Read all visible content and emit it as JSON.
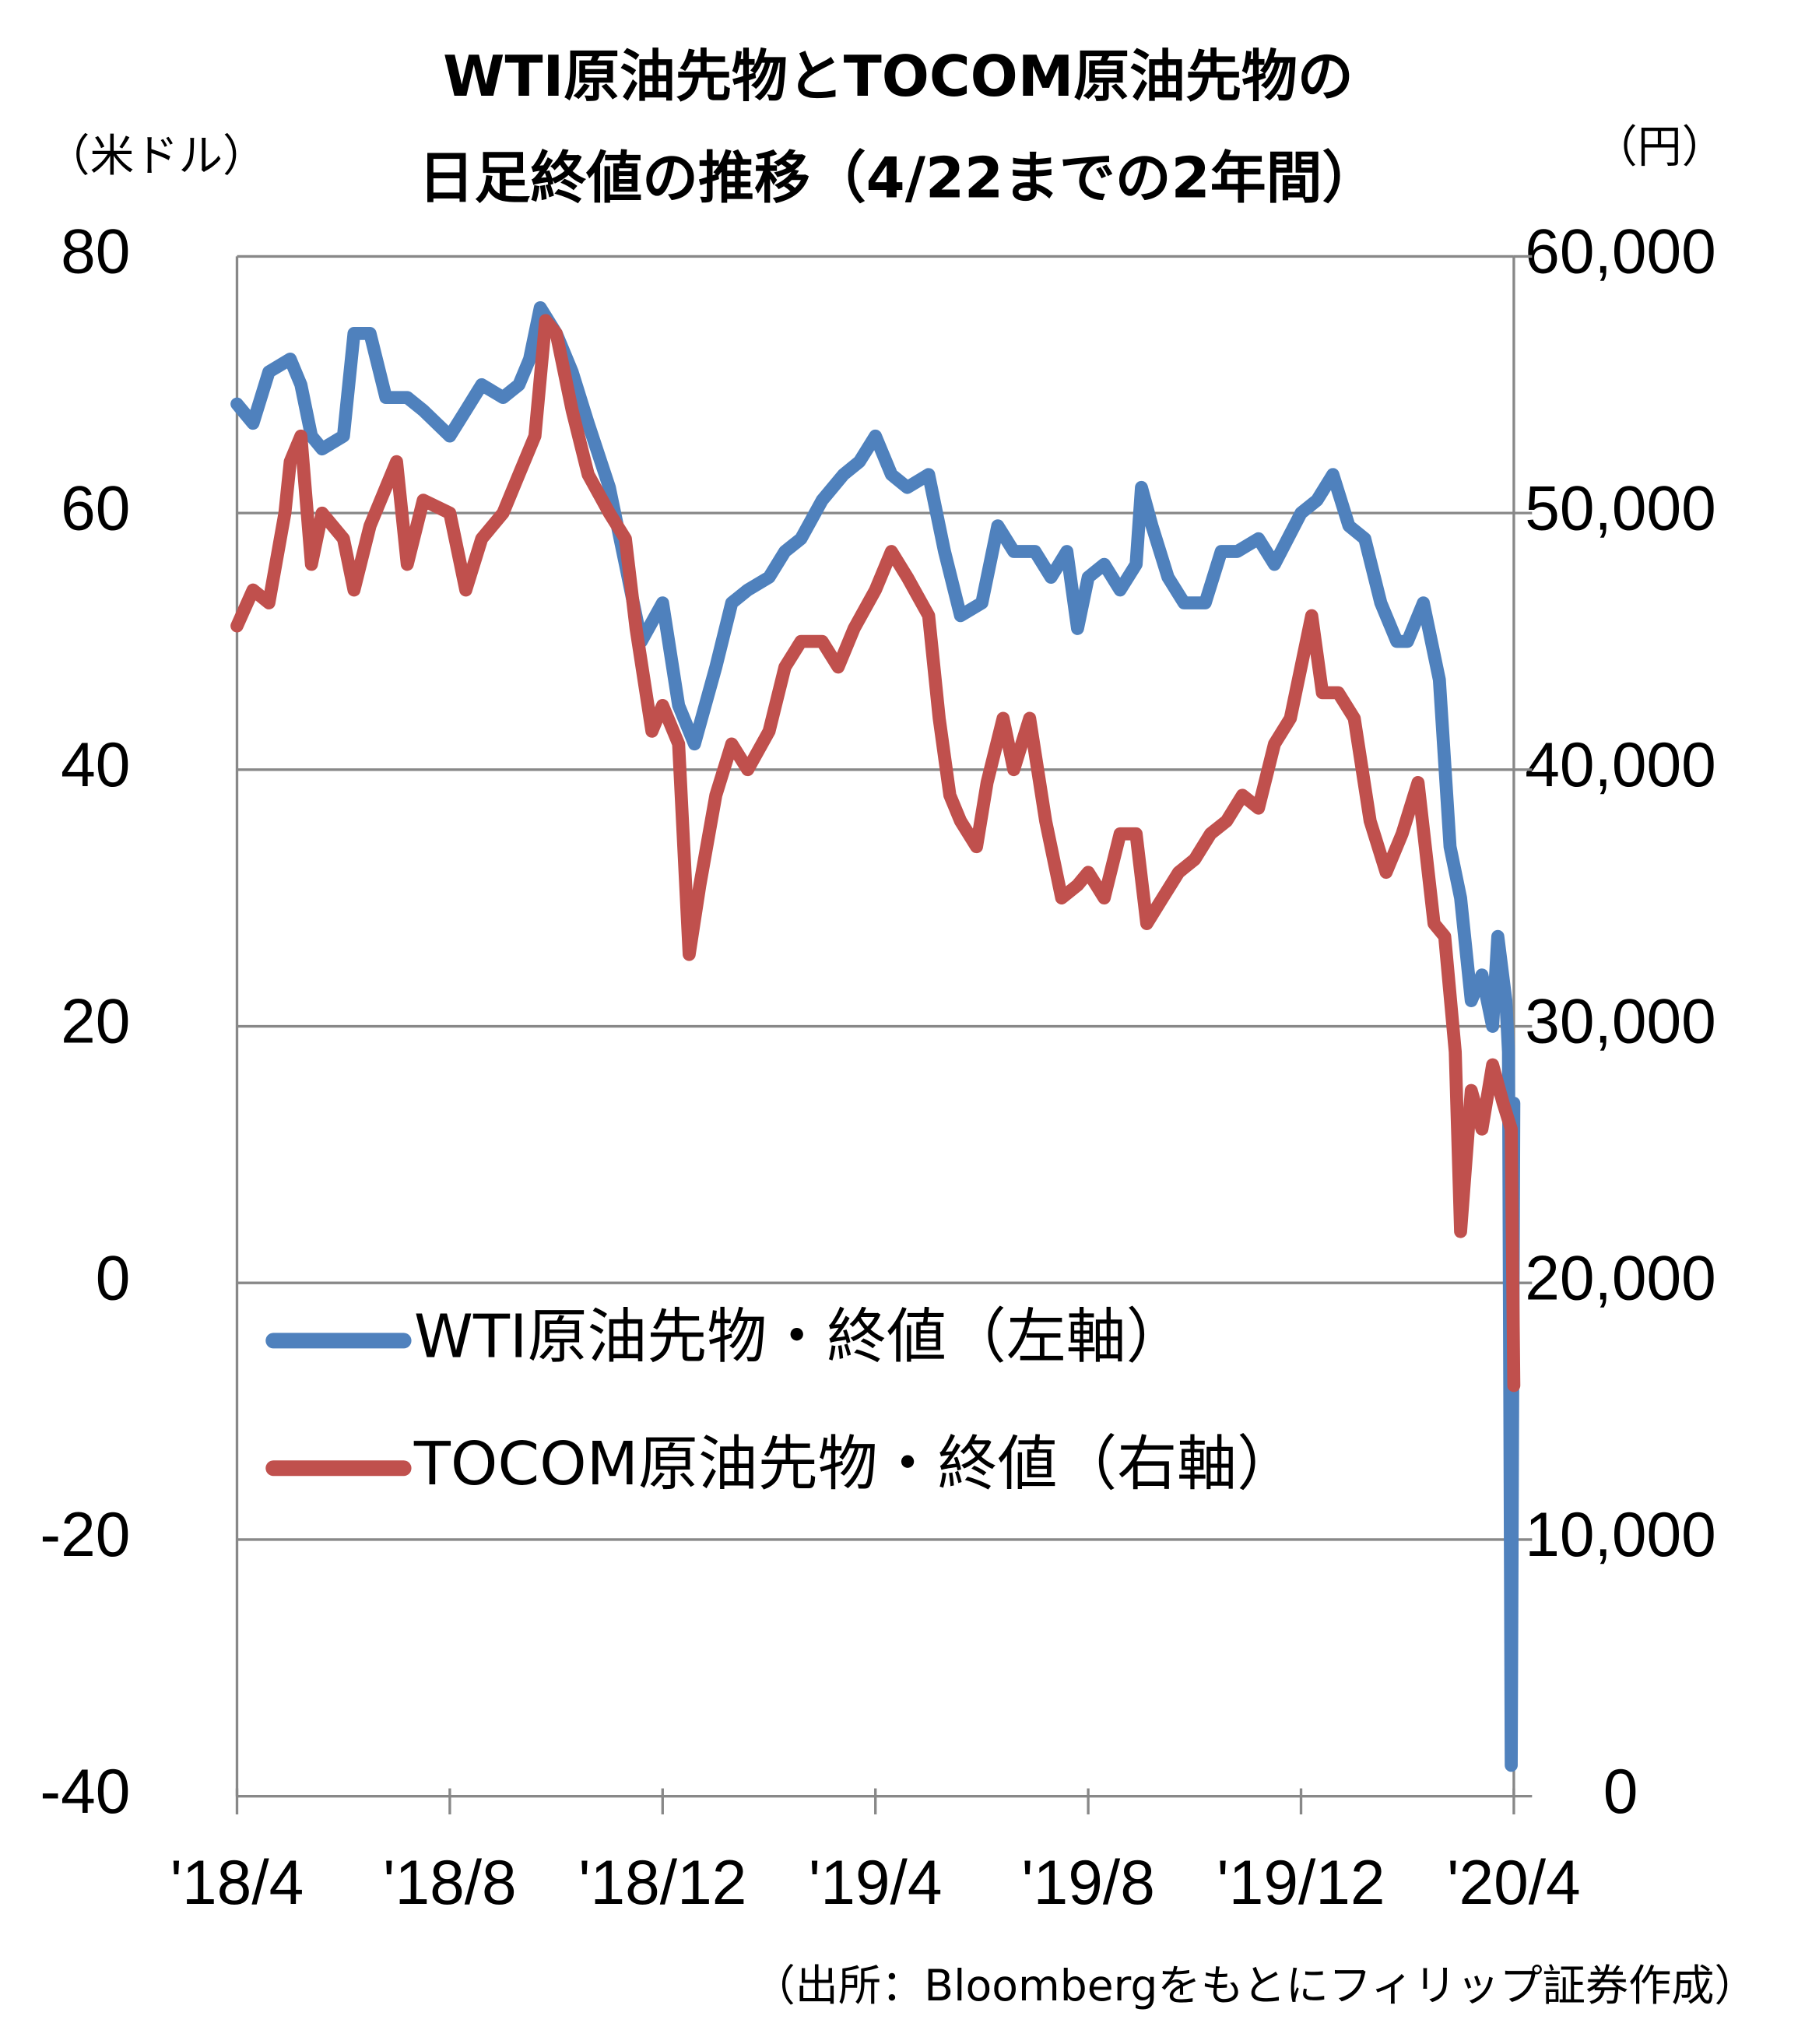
{
  "chart_data": {
    "type": "line",
    "title": [
      "WTI原油先物とTOCOM原油先物の",
      "日足終値の推移（4/22までの2年間）"
    ],
    "ylabel": "（米ドル）",
    "y2label": "（円）",
    "source": "（出所：Bloombergをもとにフィリップ証券作成）",
    "xlim": [
      0,
      24
    ],
    "xticks": [
      {
        "value": 0,
        "label": "'18/4"
      },
      {
        "value": 4,
        "label": "'18/8"
      },
      {
        "value": 8,
        "label": "'18/12"
      },
      {
        "value": 12,
        "label": "'19/4"
      },
      {
        "value": 16,
        "label": "'19/8"
      },
      {
        "value": 20,
        "label": "'19/12"
      },
      {
        "value": 24,
        "label": "'20/4"
      }
    ],
    "ylim": [
      -40,
      80
    ],
    "yticks": [
      80,
      60,
      40,
      20,
      0,
      -20,
      -40
    ],
    "negative_tick_color": "#ff0000",
    "y2lim": [
      0,
      60000
    ],
    "y2ticks": [
      {
        "value": 60000,
        "label": "60,000"
      },
      {
        "value": 50000,
        "label": "50,000"
      },
      {
        "value": 40000,
        "label": "40,000"
      },
      {
        "value": 30000,
        "label": "30,000"
      },
      {
        "value": 20000,
        "label": "20,000"
      },
      {
        "value": 10000,
        "label": "10,000"
      },
      0
    ],
    "grid": true,
    "legend": "center-left",
    "series": [
      {
        "name": "WTI原油先物・終値（左軸）",
        "color": "#4f81bd",
        "x": [
          0,
          0.3,
          0.6,
          1.0,
          1.2,
          1.4,
          1.6,
          2.0,
          2.2,
          2.5,
          2.8,
          3.2,
          3.5,
          4.0,
          4.3,
          4.6,
          5.0,
          5.3,
          5.5,
          5.7,
          6.0,
          6.3,
          6.6,
          7.0,
          7.3,
          7.6,
          8.0,
          8.3,
          8.6,
          9.0,
          9.3,
          9.6,
          10.0,
          10.3,
          10.6,
          11.0,
          11.4,
          11.7,
          12.0,
          12.3,
          12.6,
          13.0,
          13.3,
          13.6,
          14.0,
          14.3,
          14.6,
          15.0,
          15.3,
          15.6,
          15.8,
          16.0,
          16.3,
          16.6,
          16.9,
          17.0,
          17.2,
          17.5,
          17.8,
          18.2,
          18.5,
          18.8,
          19.2,
          19.5,
          20.0,
          20.3,
          20.6,
          20.9,
          21.2,
          21.5,
          21.8,
          22.0,
          22.3,
          22.6,
          22.8,
          23.0,
          23.2,
          23.4,
          23.6,
          23.7,
          23.85,
          23.9,
          23.95,
          24.0
        ],
        "values": [
          68.5,
          67,
          71,
          72,
          70,
          66,
          65,
          66,
          74,
          74,
          69,
          69,
          68,
          66,
          68,
          70,
          69,
          70,
          72,
          76,
          74,
          71,
          67,
          62,
          56,
          50,
          53,
          45,
          42,
          48,
          53,
          54,
          55,
          57,
          58,
          61,
          63,
          64,
          66,
          63,
          62,
          63,
          57,
          52,
          53,
          59,
          57,
          57,
          55,
          57,
          51,
          55,
          56,
          54,
          56,
          62,
          59,
          55,
          53,
          53,
          57,
          57,
          58,
          56,
          60,
          61,
          63,
          59,
          58,
          53,
          50,
          50,
          53,
          47,
          34,
          30,
          22,
          24,
          20,
          27,
          22,
          18,
          -37.6,
          14
        ]
      },
      {
        "name": "TOCOM原油先物・終値（右軸）",
        "color": "#c0504d",
        "axis": "y2",
        "x": [
          0,
          0.3,
          0.6,
          0.9,
          1.0,
          1.2,
          1.4,
          1.6,
          2.0,
          2.2,
          2.5,
          2.8,
          3.0,
          3.2,
          3.5,
          4.0,
          4.3,
          4.6,
          5.0,
          5.3,
          5.6,
          5.8,
          6.0,
          6.3,
          6.6,
          7.0,
          7.3,
          7.5,
          7.8,
          8.0,
          8.3,
          8.5,
          8.7,
          9.0,
          9.3,
          9.6,
          10.0,
          10.3,
          10.6,
          11.0,
          11.3,
          11.6,
          12.0,
          12.3,
          12.6,
          13.0,
          13.2,
          13.4,
          13.6,
          13.9,
          14.1,
          14.4,
          14.6,
          14.9,
          15.2,
          15.5,
          15.8,
          16.0,
          16.3,
          16.6,
          16.9,
          17.1,
          17.4,
          17.7,
          18.0,
          18.3,
          18.6,
          18.9,
          19.2,
          19.5,
          19.8,
          20.0,
          20.2,
          20.4,
          20.7,
          21.0,
          21.3,
          21.6,
          21.9,
          22.2,
          22.5,
          22.7,
          22.9,
          23.0,
          23.2,
          23.4,
          23.6,
          23.8,
          23.95,
          24.0
        ],
        "values": [
          45600,
          47000,
          46500,
          50000,
          52000,
          53000,
          48000,
          50000,
          49000,
          47000,
          49500,
          51000,
          52000,
          48000,
          50500,
          50000,
          47000,
          49000,
          50000,
          51500,
          53000,
          57500,
          57000,
          54000,
          51500,
          50000,
          49000,
          45500,
          41500,
          42500,
          41000,
          32800,
          35500,
          39000,
          41000,
          40000,
          41500,
          44000,
          45000,
          45000,
          44000,
          45500,
          47000,
          48500,
          47500,
          46000,
          42000,
          39000,
          38000,
          37000,
          39500,
          42000,
          40000,
          42000,
          38000,
          35000,
          35500,
          36000,
          35000,
          37500,
          37500,
          34000,
          35000,
          36000,
          36500,
          37500,
          38000,
          39000,
          38500,
          41000,
          42000,
          44000,
          46000,
          43000,
          43000,
          42000,
          38000,
          36000,
          37500,
          39500,
          34000,
          33500,
          29000,
          22000,
          27500,
          26000,
          28500,
          27000,
          26000,
          16000
        ]
      }
    ]
  }
}
